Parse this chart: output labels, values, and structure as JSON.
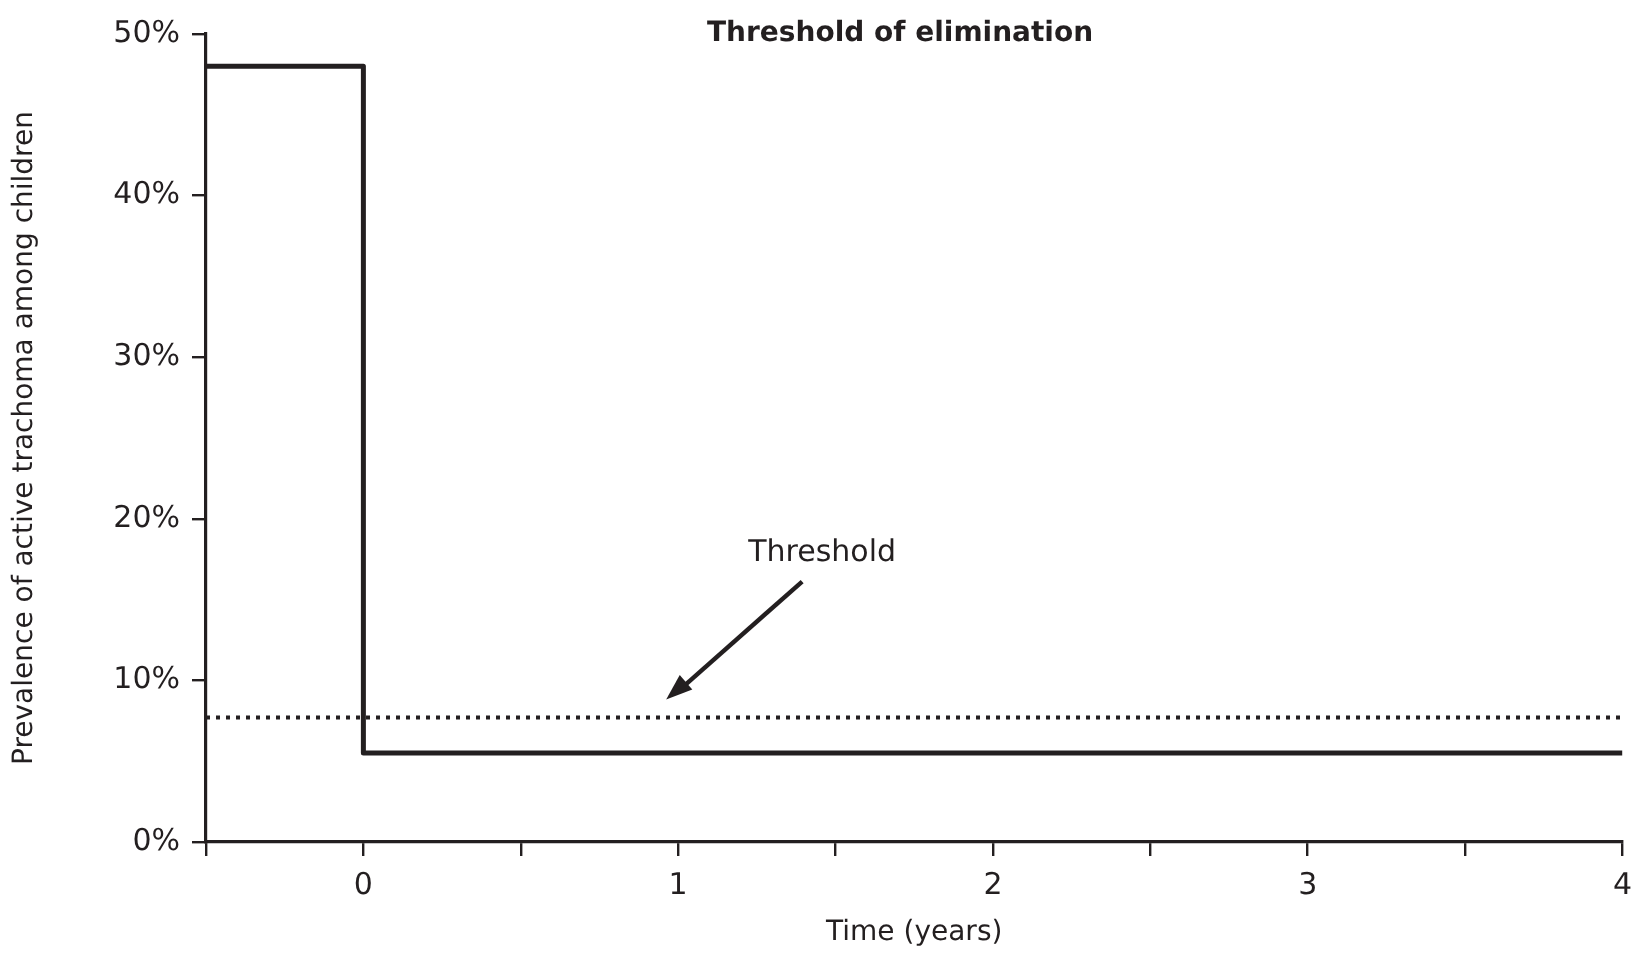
{
  "chart_data": {
    "type": "step",
    "title": "Threshold of elimination",
    "xlabel": "Time (years)",
    "ylabel": "Prevalence of active trachoma among children",
    "x": [
      -0.5,
      0,
      4
    ],
    "series": [
      {
        "color": "#231f20",
        "values": [
          48,
          5.5,
          5.5
        ]
      }
    ],
    "xlim": [
      -0.5,
      4
    ],
    "xticks": [
      {
        "value": -0.5,
        "label": null
      },
      0,
      {
        "value": 0.5,
        "label": null
      },
      1,
      {
        "value": 1.5,
        "label": null
      },
      2,
      {
        "value": 2.5,
        "label": null
      },
      3,
      {
        "value": 3.5,
        "label": null
      },
      4
    ],
    "ylim": [
      0,
      50
    ],
    "yticks": [
      {
        "value": 0,
        "label": "0%"
      },
      {
        "value": 10,
        "label": "10%"
      },
      {
        "value": 20,
        "label": "20%"
      },
      {
        "value": 30,
        "label": "30%"
      },
      {
        "value": 40,
        "label": "40%"
      },
      {
        "value": 50,
        "label": "50%"
      }
    ],
    "ref_lines": [
      {
        "axis": "y",
        "value": 7.7,
        "label": "Threshold",
        "color": "#231f20",
        "line_style": "dotted"
      }
    ],
    "grid": false,
    "legend": false,
    "marker": "none",
    "line_style": "solid"
  }
}
